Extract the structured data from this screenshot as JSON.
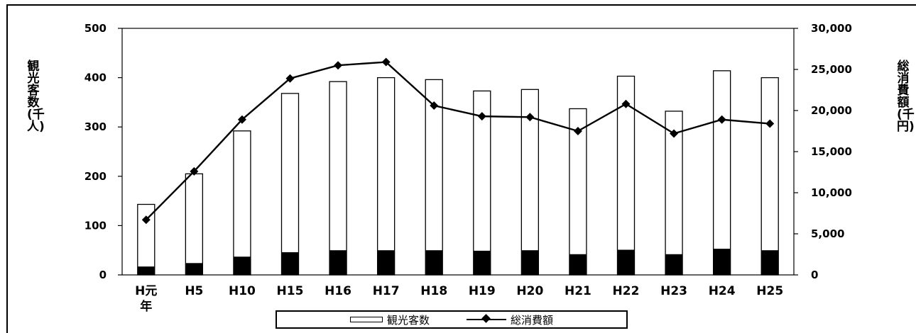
{
  "chart_data": {
    "type": "bar+line",
    "categories": [
      "H元年",
      "H5",
      "H10",
      "H15",
      "H16",
      "H17",
      "H18",
      "H19",
      "H20",
      "H21",
      "H22",
      "H23",
      "H24",
      "H25"
    ],
    "series": [
      {
        "name": "観光客数",
        "type": "bar",
        "axis": "left",
        "values": [
          143,
          205,
          292,
          368,
          392,
          400,
          396,
          373,
          376,
          337,
          403,
          332,
          414,
          400
        ],
        "filled_base": [
          17,
          24,
          37,
          46,
          50,
          50,
          50,
          49,
          50,
          42,
          51,
          42,
          53,
          50
        ]
      },
      {
        "name": "総消費額",
        "type": "line",
        "axis": "right",
        "values": [
          6700,
          12600,
          18900,
          23900,
          25500,
          25900,
          20600,
          19300,
          19200,
          17500,
          20800,
          17200,
          18900,
          18400
        ]
      }
    ],
    "y_left": {
      "label": "観光客数(千人)",
      "min": 0,
      "max": 500,
      "ticks": [
        "0",
        "100",
        "200",
        "300",
        "400",
        "500"
      ]
    },
    "y_right": {
      "label": "総消費額(千円)",
      "min": 0,
      "max": 30000,
      "ticks": [
        "0",
        "5,000",
        "10,000",
        "15,000",
        "20,000",
        "25,000",
        "30,000"
      ]
    },
    "legend": {
      "position": "bottom-center"
    },
    "grid": false
  }
}
